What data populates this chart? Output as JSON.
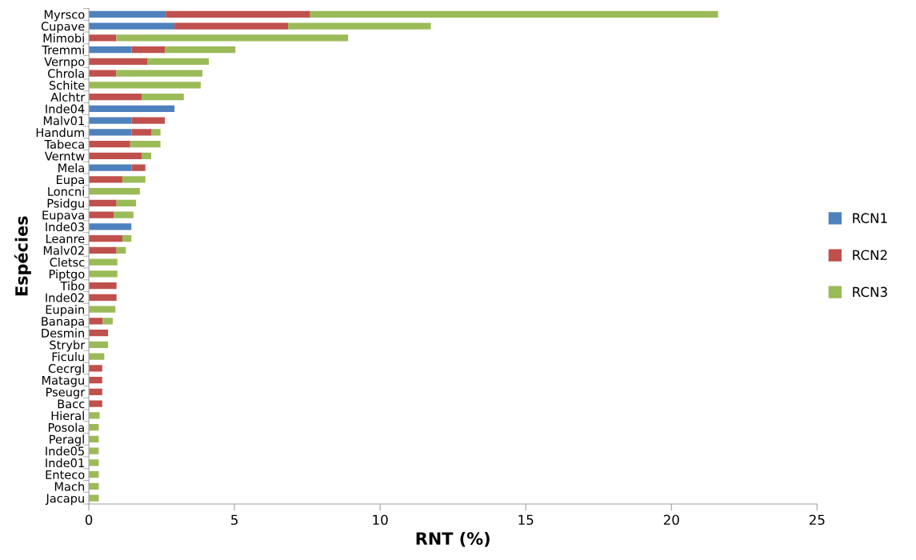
{
  "chart_data": {
    "type": "bar",
    "orientation": "horizontal",
    "stacked": true,
    "xlabel": "RNT (%)",
    "ylabel": "Espécies",
    "categories": [
      "Myrsco",
      "Cupave",
      "Mimobi",
      "Tremmi",
      "Vernpo",
      "Chrola",
      "Schite",
      "Alchtr",
      "Inde04",
      "Malv01",
      "Handum",
      "Tabeca",
      "Verntw",
      "Mela",
      "Eupa",
      "Loncni",
      "Psidgu",
      "Eupava",
      "Inde03",
      "Leanre",
      "Malv02",
      "Cletsc",
      "Piptgo",
      "Tibo",
      "Inde02",
      "Eupain",
      "Banapa",
      "Desmin",
      "Strybr",
      "Ficulu",
      "Cecrgl",
      "Matagu",
      "Pseugr",
      "Bacc",
      "Hieral",
      "Posola",
      "Peragl",
      "Inde05",
      "Inde01",
      "Enteco",
      "Mach",
      "Jacapu"
    ],
    "series": [
      {
        "name": "RCN1",
        "color": "#4f81bd",
        "values": [
          2.64,
          2.94,
          null,
          1.47,
          null,
          null,
          null,
          null,
          2.94,
          1.47,
          1.47,
          null,
          null,
          1.47,
          null,
          null,
          null,
          null,
          1.46,
          null,
          null,
          null,
          null,
          null,
          null,
          null,
          null,
          null,
          null,
          null,
          null,
          null,
          null,
          null,
          null,
          null,
          null,
          null,
          null,
          null,
          null,
          null
        ]
      },
      {
        "name": "RCN2",
        "color": "#c0504d",
        "values": [
          4.96,
          3.9,
          0.94,
          1.15,
          2.02,
          0.94,
          null,
          1.81,
          null,
          1.14,
          0.67,
          1.42,
          1.81,
          0.47,
          1.15,
          null,
          0.95,
          0.85,
          null,
          1.15,
          0.95,
          null,
          null,
          0.95,
          0.95,
          null,
          0.47,
          0.66,
          null,
          null,
          0.46,
          0.46,
          0.46,
          0.46,
          null,
          null,
          null,
          null,
          null,
          null,
          null,
          null
        ]
      },
      {
        "name": "RCN3",
        "color": "#9bbb59",
        "values": [
          14.0,
          4.9,
          7.96,
          2.41,
          2.1,
          2.96,
          3.84,
          1.45,
          null,
          null,
          0.32,
          1.04,
          0.33,
          null,
          0.79,
          1.75,
          0.67,
          0.68,
          null,
          0.31,
          0.32,
          0.98,
          0.98,
          null,
          null,
          0.91,
          0.35,
          null,
          0.66,
          0.53,
          null,
          null,
          null,
          null,
          0.37,
          0.34,
          0.34,
          0.34,
          0.34,
          0.34,
          0.34,
          0.34
        ]
      }
    ],
    "xlim": [
      0,
      25
    ],
    "xticks": [
      0,
      5,
      10,
      15,
      20,
      25
    ],
    "grid": false,
    "legend": "right"
  }
}
